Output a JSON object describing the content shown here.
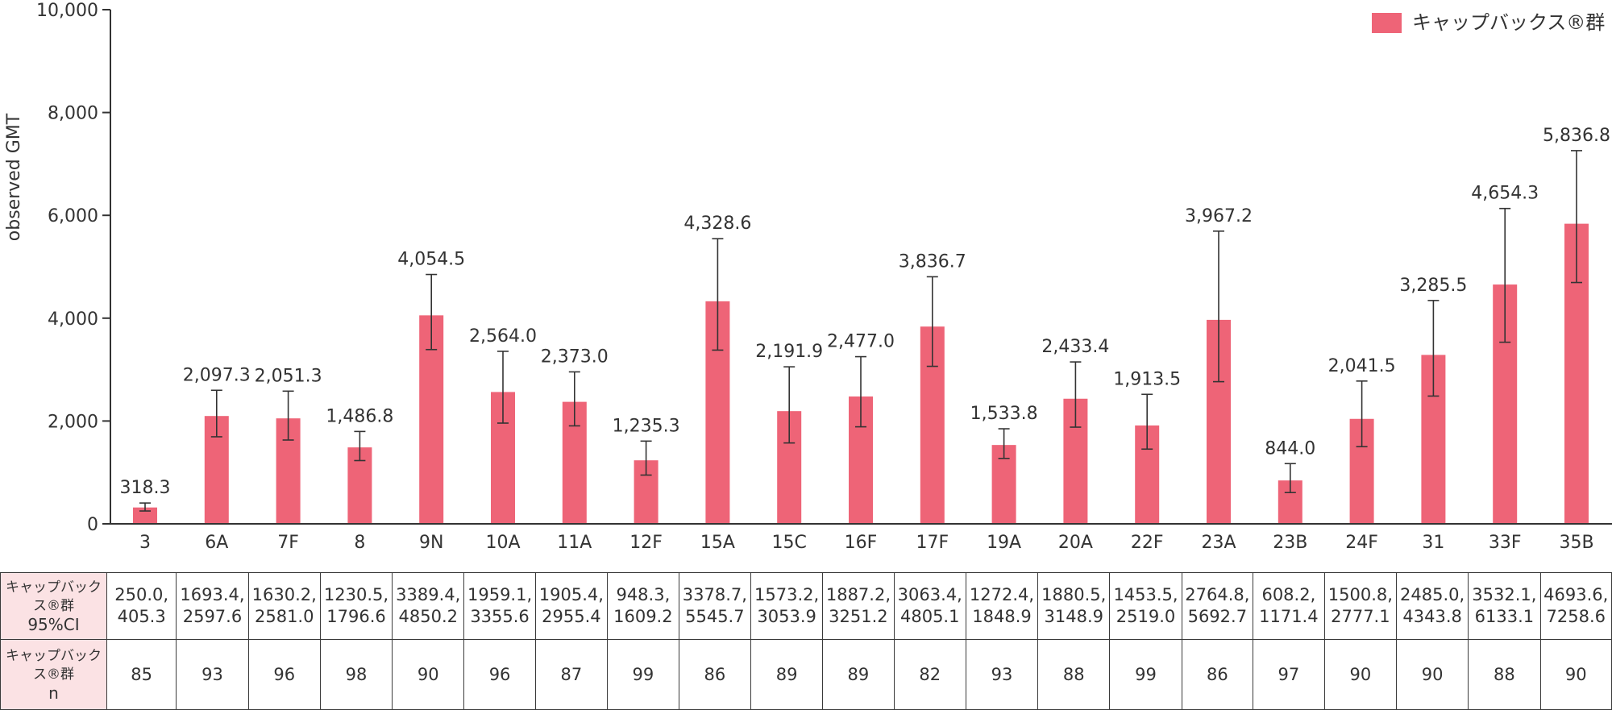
{
  "chart_data": {
    "type": "bar",
    "title": "",
    "xlabel": "",
    "ylabel": "observed  GMT",
    "ylim": [
      0,
      10000
    ],
    "yticks": [
      0,
      2000,
      4000,
      6000,
      8000,
      10000
    ],
    "ytick_labels": [
      "0",
      "2,000",
      "4,000",
      "6,000",
      "8,000",
      "10,000"
    ],
    "legend": {
      "position": "top-right",
      "entries": [
        "キャップバックス®群"
      ]
    },
    "categories": [
      "3",
      "6A",
      "7F",
      "8",
      "9N",
      "10A",
      "11A",
      "12F",
      "15A",
      "15C",
      "16F",
      "17F",
      "19A",
      "20A",
      "22F",
      "23A",
      "23B",
      "24F",
      "31",
      "33F",
      "35B"
    ],
    "series": [
      {
        "name": "キャップバックス®群",
        "color": "#ee6477",
        "values": [
          318.3,
          2097.3,
          2051.3,
          1486.8,
          4054.5,
          2564.0,
          2373.0,
          1235.3,
          4328.6,
          2191.9,
          2477.0,
          3836.7,
          1533.8,
          2433.4,
          1913.5,
          3967.2,
          844.0,
          2041.5,
          3285.5,
          4654.3,
          5836.8
        ],
        "value_labels": [
          "318.3",
          "2,097.3",
          "2,051.3",
          "1,486.8",
          "4,054.5",
          "2,564.0",
          "2,373.0",
          "1,235.3",
          "4,328.6",
          "2,191.9",
          "2,477.0",
          "3,836.7",
          "1,533.8",
          "2,433.4",
          "1,913.5",
          "3,967.2",
          "844.0",
          "2,041.5",
          "3,285.5",
          "4,654.3",
          "5,836.8"
        ],
        "ci_lower": [
          250.0,
          1693.4,
          1630.2,
          1230.5,
          3389.4,
          1959.1,
          1905.4,
          948.3,
          3378.7,
          1573.2,
          1887.2,
          3063.4,
          1272.4,
          1880.5,
          1453.5,
          2764.8,
          608.2,
          1500.8,
          2485.0,
          3532.1,
          4693.6
        ],
        "ci_upper": [
          405.3,
          2597.6,
          2581.0,
          1796.6,
          4850.2,
          3355.6,
          2955.4,
          1609.2,
          5545.7,
          3053.9,
          3251.2,
          4805.1,
          1848.9,
          3148.9,
          2519.0,
          5692.7,
          1171.4,
          2777.1,
          4343.8,
          6133.1,
          7258.6
        ]
      }
    ]
  },
  "table": {
    "ci_row_header": "キャップバックス®群",
    "ci_row_sub": "95%CI",
    "ci_cells": [
      "250.0,\n405.3",
      "1693.4,\n2597.6",
      "1630.2,\n2581.0",
      "1230.5,\n1796.6",
      "3389.4,\n4850.2",
      "1959.1,\n3355.6",
      "1905.4,\n2955.4",
      "948.3,\n1609.2",
      "3378.7,\n5545.7",
      "1573.2,\n3053.9",
      "1887.2,\n3251.2",
      "3063.4,\n4805.1",
      "1272.4,\n1848.9",
      "1880.5,\n3148.9",
      "1453.5,\n2519.0",
      "2764.8,\n5692.7",
      "608.2,\n1171.4",
      "1500.8,\n2777.1",
      "2485.0,\n4343.8",
      "3532.1,\n6133.1",
      "4693.6,\n7258.6"
    ],
    "n_row_header": "キャップバックス®群",
    "n_row_sub": "n",
    "n_cells": [
      "85",
      "93",
      "96",
      "98",
      "90",
      "96",
      "87",
      "99",
      "86",
      "89",
      "89",
      "82",
      "93",
      "88",
      "99",
      "86",
      "97",
      "90",
      "90",
      "88",
      "90"
    ]
  }
}
